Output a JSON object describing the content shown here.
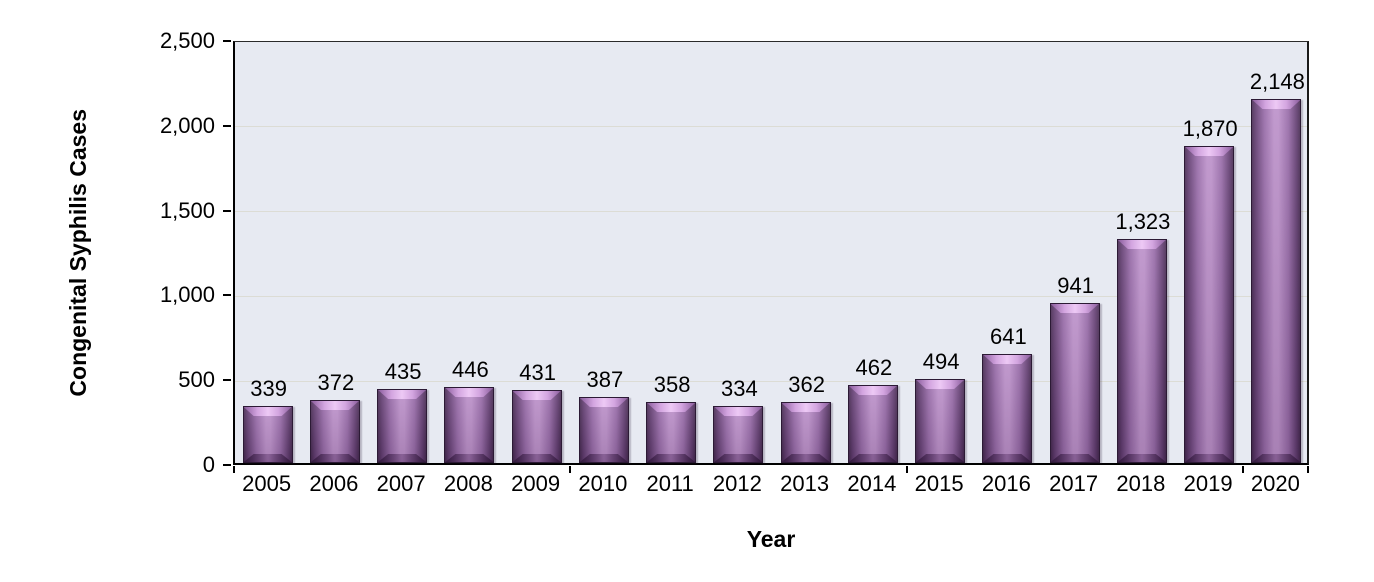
{
  "chart_data": {
    "type": "bar",
    "title": "",
    "xlabel": "Year",
    "ylabel": "Congenital Syphilis Cases",
    "categories": [
      "2005",
      "2006",
      "2007",
      "2008",
      "2009",
      "2010",
      "2011",
      "2012",
      "2013",
      "2014",
      "2015",
      "2016",
      "2017",
      "2018",
      "2019",
      "2020"
    ],
    "values": [
      339,
      372,
      435,
      446,
      431,
      387,
      358,
      334,
      362,
      462,
      494,
      641,
      941,
      1323,
      1870,
      2148
    ],
    "value_labels": [
      "339",
      "372",
      "435",
      "446",
      "431",
      "387",
      "358",
      "334",
      "362",
      "462",
      "494",
      "641",
      "941",
      "1,323",
      "1,870",
      "2,148"
    ],
    "ylim": [
      0,
      2500
    ],
    "ytick_values": [
      0,
      500,
      1000,
      1500,
      2000,
      2500
    ],
    "ytick_labels": [
      "0",
      "500",
      "1,000",
      "1,500",
      "2,000",
      "2,500"
    ],
    "gridline_values": [
      500,
      1000,
      1500,
      2000
    ],
    "xtick_boundary_indices": [
      0,
      5,
      10,
      15,
      16
    ],
    "grid": true,
    "legend": "none",
    "colors": {
      "page_bg": "#ffffff",
      "plot_bg": "#e7eaf2",
      "gridline": "#dcdcd5",
      "axis": "#000000",
      "text": "#000000",
      "bar_fill_center": "#bb8fc9",
      "bar_fill_mid": "#9669a7",
      "bar_fill_edge": "#472a52",
      "bar_outline": "#2c1a35",
      "bar_top_highlight": "#edc9f5"
    }
  }
}
